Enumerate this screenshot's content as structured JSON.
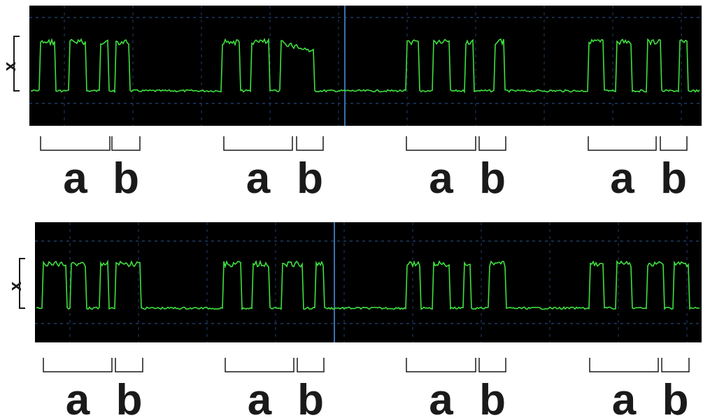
{
  "panels": [
    {
      "y_label": "x",
      "segments": [
        {
          "label": "a"
        },
        {
          "label": "b"
        },
        {
          "label": "a"
        },
        {
          "label": "b"
        },
        {
          "label": "a"
        },
        {
          "label": "b"
        },
        {
          "label": "a"
        },
        {
          "label": "b"
        }
      ]
    },
    {
      "y_label": "x",
      "segments": [
        {
          "label": "a"
        },
        {
          "label": "b"
        },
        {
          "label": "a"
        },
        {
          "label": "b"
        },
        {
          "label": "a"
        },
        {
          "label": "b"
        },
        {
          "label": "a"
        },
        {
          "label": "b"
        }
      ]
    }
  ]
}
